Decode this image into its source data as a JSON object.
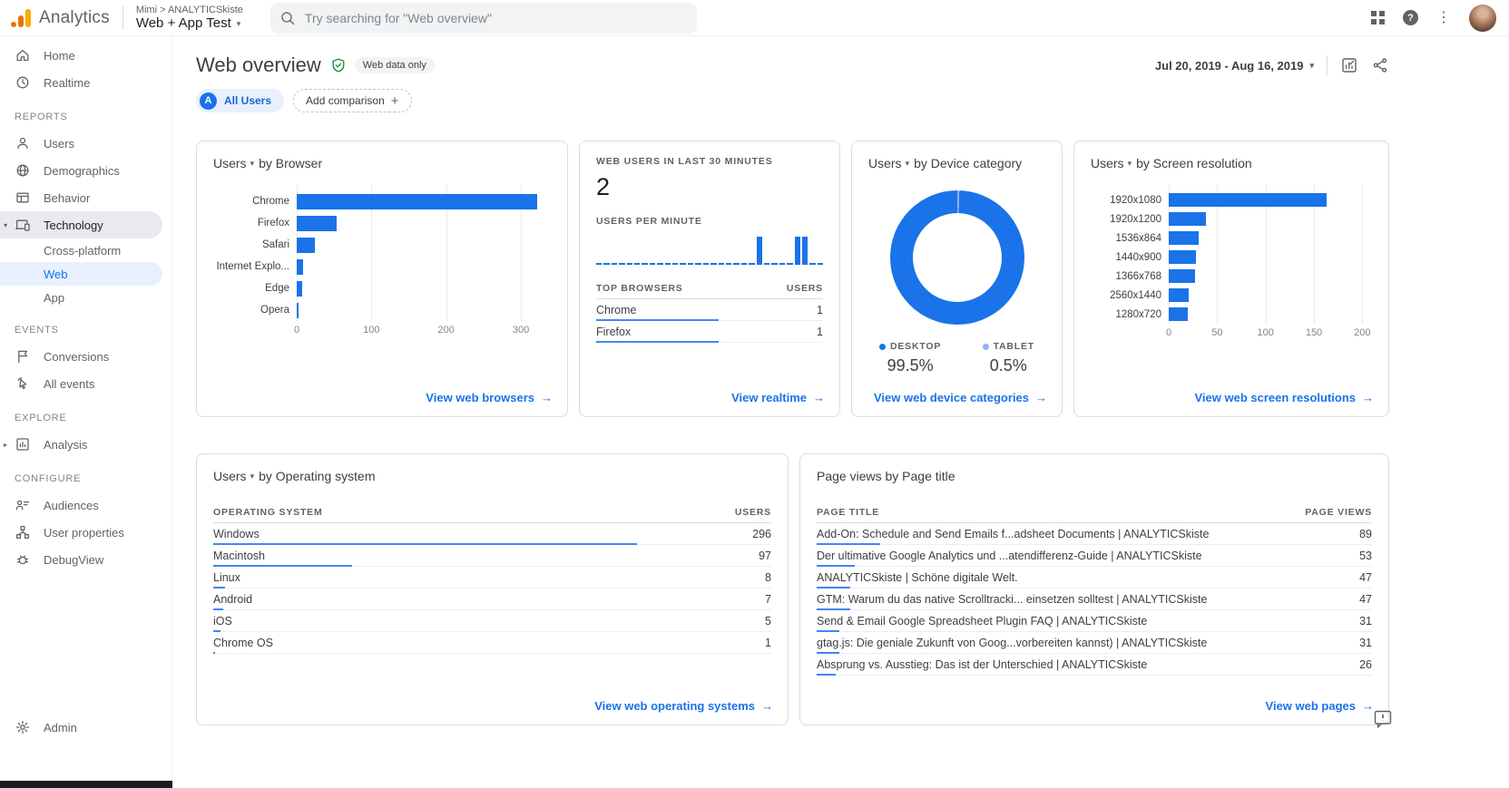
{
  "icons": {
    "caret_down": "▾",
    "caret_right": "▸",
    "arrow": "→",
    "plus": "+",
    "help": "?",
    "kebab": "⋮"
  },
  "topbar": {
    "brand": "Analytics",
    "breadcrumb_small": "Mimi > ANALYTICSkiste",
    "breadcrumb_main": "Web + App Test",
    "search_placeholder": "Try searching for \"Web overview\""
  },
  "sidebar": {
    "sections": [
      {
        "heading": null,
        "items": [
          {
            "label": "Home",
            "icon": "home"
          },
          {
            "label": "Realtime",
            "icon": "clock"
          }
        ]
      },
      {
        "heading": "REPORTS",
        "items": [
          {
            "label": "Users",
            "icon": "person"
          },
          {
            "label": "Demographics",
            "icon": "globe"
          },
          {
            "label": "Behavior",
            "icon": "window"
          },
          {
            "label": "Technology",
            "icon": "devices",
            "selected": true,
            "expanded": true,
            "children": [
              {
                "label": "Cross-platform"
              },
              {
                "label": "Web",
                "active": true
              },
              {
                "label": "App"
              }
            ]
          }
        ]
      },
      {
        "heading": "EVENTS",
        "items": [
          {
            "label": "Conversions",
            "icon": "flag"
          },
          {
            "label": "All events",
            "icon": "tap"
          }
        ]
      },
      {
        "heading": "EXPLORE",
        "items": [
          {
            "label": "Analysis",
            "icon": "analysis",
            "collapsed": true
          }
        ]
      },
      {
        "heading": "CONFIGURE",
        "items": [
          {
            "label": "Audiences",
            "icon": "audiences"
          },
          {
            "label": "User properties",
            "icon": "properties"
          },
          {
            "label": "DebugView",
            "icon": "bug"
          }
        ]
      }
    ],
    "admin": {
      "label": "Admin",
      "icon": "gear"
    }
  },
  "header": {
    "title": "Web overview",
    "data_badge": "Web data only",
    "date_range": "Jul 20, 2019 - Aug 16, 2019",
    "all_users_chip": {
      "avatar_letter": "A",
      "label": "All Users"
    },
    "add_comparison_label": "Add comparison"
  },
  "cards": {
    "browser": {
      "metric": "Users",
      "dimension": "by Browser",
      "link": "View web browsers"
    },
    "realtime": {
      "title": "WEB USERS IN LAST 30 MINUTES",
      "value": "2",
      "subtitle": "USERS PER MINUTE",
      "table_headers": [
        "TOP BROWSERS",
        "USERS"
      ],
      "link": "View realtime"
    },
    "device": {
      "metric": "Users",
      "dimension": "by Device category",
      "link": "View web device categories"
    },
    "resolution": {
      "metric": "Users",
      "dimension": "by Screen resolution",
      "link": "View web screen resolutions"
    },
    "os": {
      "metric": "Users",
      "dimension": "by Operating system",
      "table_headers": [
        "OPERATING SYSTEM",
        "USERS"
      ],
      "link": "View web operating systems"
    },
    "pages": {
      "title": "Page views by Page title",
      "table_headers": [
        "PAGE TITLE",
        "PAGE VIEWS"
      ],
      "link": "View web pages"
    }
  },
  "chart_data": [
    {
      "id": "browser",
      "type": "bar",
      "orientation": "horizontal",
      "title": "Users by Browser",
      "categories": [
        "Chrome",
        "Firefox",
        "Safari",
        "Internet Explo...",
        "Edge",
        "Opera"
      ],
      "values": [
        322,
        53,
        24,
        9,
        7,
        2
      ],
      "xticks": [
        0,
        100,
        200,
        300
      ],
      "xmax": 340,
      "bar_color": "#1a73e8",
      "grid": true
    },
    {
      "id": "realtime_per_minute",
      "type": "bar",
      "title": "Users per minute (last 30 minutes)",
      "users_last_30_min": 2,
      "minutes": 30,
      "ymax": 1,
      "values": [
        0,
        0,
        0,
        0,
        0,
        0,
        0,
        0,
        0,
        0,
        0,
        0,
        0,
        0,
        0,
        0,
        0,
        0,
        0,
        0,
        0,
        1,
        0,
        0,
        0,
        0,
        1,
        1,
        0,
        0
      ],
      "top_browsers": [
        {
          "name": "Chrome",
          "users": 1
        },
        {
          "name": "Firefox",
          "users": 1
        }
      ]
    },
    {
      "id": "device_category",
      "type": "pie",
      "title": "Users by Device category",
      "categories": [
        "DESKTOP",
        "TABLET"
      ],
      "values": [
        99.5,
        0.5
      ],
      "labels": [
        "99.5%",
        "0.5%"
      ],
      "colors": [
        "#1a73e8",
        "#8ab4f8"
      ],
      "donut": true
    },
    {
      "id": "screen_resolution",
      "type": "bar",
      "orientation": "horizontal",
      "title": "Users by Screen resolution",
      "categories": [
        "1920x1080",
        "1920x1200",
        "1536x864",
        "1440x900",
        "1366x768",
        "2560x1440",
        "1280x720"
      ],
      "values": [
        163,
        38,
        31,
        28,
        27,
        21,
        20
      ],
      "xticks": [
        0,
        50,
        100,
        150,
        200
      ],
      "xmax": 210,
      "bar_color": "#1a73e8",
      "grid": true
    },
    {
      "id": "operating_system",
      "type": "table",
      "title": "Users by Operating system",
      "columns": [
        "OPERATING SYSTEM",
        "USERS"
      ],
      "rows": [
        {
          "name": "Windows",
          "value": 296
        },
        {
          "name": "Macintosh",
          "value": 97
        },
        {
          "name": "Linux",
          "value": 8
        },
        {
          "name": "Android",
          "value": 7
        },
        {
          "name": "iOS",
          "value": 5
        },
        {
          "name": "Chrome OS",
          "value": 1
        }
      ]
    },
    {
      "id": "page_views_by_title",
      "type": "table",
      "title": "Page views by Page title",
      "columns": [
        "PAGE TITLE",
        "PAGE VIEWS"
      ],
      "rows": [
        {
          "name": "Add-On: Schedule and Send Emails f...adsheet Documents | ANALYTICSkiste",
          "value": 89
        },
        {
          "name": "Der ultimative Google Analytics und ...atendifferenz-Guide | ANALYTICSkiste",
          "value": 53
        },
        {
          "name": "ANALYTICSkiste | Schöne digitale Welt.",
          "value": 47
        },
        {
          "name": "GTM: Warum du das native Scrolltracki... einsetzen solltest | ANALYTICSkiste",
          "value": 47
        },
        {
          "name": "Send & Email Google Spreadsheet Plugin FAQ | ANALYTICSkiste",
          "value": 31
        },
        {
          "name": "gtag.js: Die geniale Zukunft von Goog...vorbereiten kannst) | ANALYTICSkiste",
          "value": 31
        },
        {
          "name": "Absprung vs. Ausstieg: Das ist der Unterschied | ANALYTICSkiste",
          "value": 26
        }
      ]
    }
  ]
}
